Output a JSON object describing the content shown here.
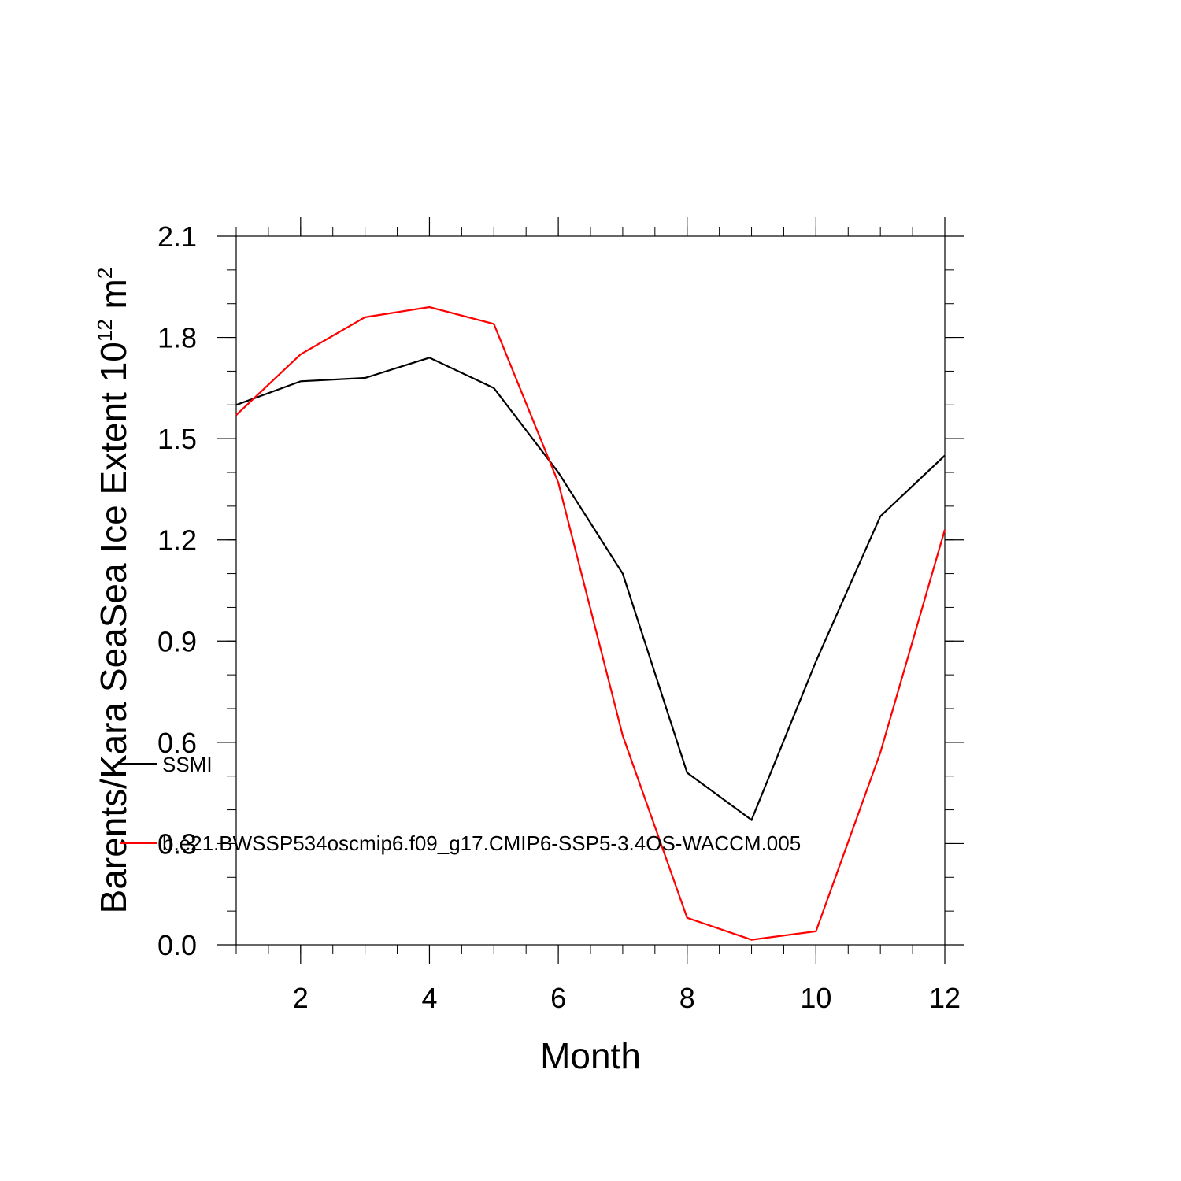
{
  "chart_data": {
    "type": "line",
    "title": "",
    "xlabel": "Month",
    "ylabel": "Barents/Kara SeaSea Ice Extent 10",
    "ylabel_superscript": "12",
    "ylabel_unit": "m",
    "ylabel_unit_superscript": "2",
    "xlim": [
      1,
      12
    ],
    "ylim": [
      0.0,
      2.1
    ],
    "xticks": [
      2,
      4,
      6,
      8,
      10,
      12
    ],
    "xtick_labels": [
      "2",
      "4",
      "6",
      "8",
      "10",
      "12"
    ],
    "yticks": [
      0.0,
      0.3,
      0.6,
      0.9,
      1.2,
      1.5,
      1.8,
      2.1
    ],
    "ytick_labels": [
      "0.0",
      "0.3",
      "0.6",
      "0.9",
      "1.2",
      "1.5",
      "1.8",
      "2.1"
    ],
    "x": [
      1,
      2,
      3,
      4,
      5,
      6,
      7,
      8,
      9,
      10,
      11,
      12
    ],
    "series": [
      {
        "name": "SSMI",
        "color": "#000000",
        "values": [
          1.6,
          1.67,
          1.68,
          1.74,
          1.65,
          1.4,
          1.1,
          0.51,
          0.37,
          0.84,
          1.27,
          1.45
        ]
      },
      {
        "name": "b.e21.BWSSP534oscmip6.f09_g17.CMIP6-SSP5-3.4OS-WACCM.005",
        "color": "#ff0000",
        "values": [
          1.57,
          1.75,
          1.86,
          1.89,
          1.84,
          1.37,
          0.62,
          0.08,
          0.015,
          0.04,
          0.57,
          1.23
        ]
      }
    ],
    "legend_placement": "left, overlapping lower plot area"
  }
}
